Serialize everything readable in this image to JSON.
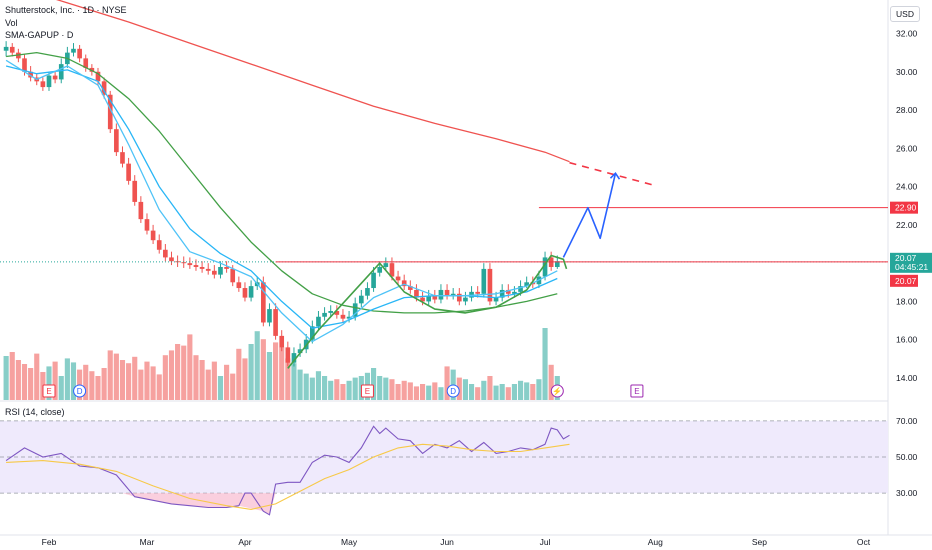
{
  "header": {
    "symbol_line": "Shutterstock, Inc. · 1D · NYSE",
    "vol_label": "Vol",
    "indicator_label": "SMA-GAPUP · D",
    "rsi_label": "RSI (14, close)",
    "currency": "USD"
  },
  "badges": {
    "last_price": "20.07",
    "countdown": "04:45:21",
    "level_price": "22.90",
    "red_price": "20.07"
  },
  "event_markers": [
    {
      "label": "E",
      "kind": "earnings",
      "color": "#f23645",
      "x": 7
    },
    {
      "label": "D",
      "kind": "dividend",
      "color": "#2962ff",
      "x": 12
    },
    {
      "label": "E",
      "kind": "earnings",
      "color": "#f23645",
      "x": 59
    },
    {
      "label": "D",
      "kind": "dividend",
      "color": "#2962ff",
      "x": 73
    },
    {
      "label": "⚡",
      "kind": "split",
      "color": "#9c27b0",
      "x": 90
    },
    {
      "label": "E",
      "kind": "earnings",
      "color": "#9c27b0",
      "x": 103
    }
  ],
  "colors": {
    "up": "#26a69a",
    "down": "#ef5350",
    "ma_green": "#43a047",
    "ma_blue": "#29b6f6",
    "ma_red": "#f23645",
    "ma200": "#ef5350",
    "drawing_blue": "#2962ff",
    "rsi_line": "#7e57c2",
    "rsi_ma": "#f7c948",
    "rsi_band": "#efeafc"
  },
  "chart_data": [
    {
      "type": "candlestick",
      "title": "Shutterstock, Inc. · 1D · NYSE",
      "x_tick_labels": [
        "Feb",
        "Mar",
        "Apr",
        "May",
        "Jun",
        "Jul",
        "Aug",
        "Sep",
        "Oct"
      ],
      "x_tick_index": {
        "Feb": 7,
        "Mar": 23,
        "Apr": 39,
        "May": 56,
        "Jun": 72,
        "Jul": 88,
        "Aug": 106,
        "Sep": 123,
        "Oct": 140
      },
      "y_ticks": [
        14.0,
        16.0,
        18.0,
        20.0,
        22.0,
        24.0,
        26.0,
        28.0,
        30.0,
        32.0
      ],
      "ylim": [
        12.85,
        33.75
      ],
      "xlim": [
        -1,
        144
      ],
      "last_price": 20.07,
      "horizontal_levels": [
        20.07,
        22.9
      ],
      "close": [
        31.3,
        31.0,
        30.7,
        30.0,
        29.7,
        29.5,
        29.2,
        29.8,
        29.6,
        30.4,
        31.0,
        31.2,
        30.7,
        30.2,
        30.0,
        29.5,
        28.8,
        27.0,
        25.8,
        25.2,
        24.3,
        23.2,
        22.3,
        21.7,
        21.2,
        20.7,
        20.3,
        20.1,
        20.05,
        20.0,
        19.9,
        19.8,
        19.7,
        19.6,
        19.4,
        19.8,
        19.7,
        19.0,
        18.7,
        18.2,
        18.8,
        19.0,
        16.9,
        17.6,
        16.2,
        15.6,
        14.8,
        15.3,
        15.5,
        16.0,
        16.7,
        17.2,
        17.4,
        17.5,
        17.3,
        17.1,
        17.2,
        17.9,
        18.3,
        18.7,
        19.5,
        19.8,
        20.0,
        19.3,
        19.1,
        18.8,
        18.6,
        18.2,
        18.0,
        18.3,
        18.1,
        18.6,
        18.3,
        18.4,
        18.0,
        18.2,
        18.5,
        18.4,
        19.7,
        18.0,
        18.2,
        18.6,
        18.4,
        18.5,
        18.8,
        19.0,
        18.9,
        19.3,
        20.3,
        19.8,
        20.1
      ],
      "open": [
        31.1,
        31.3,
        31.0,
        30.7,
        30.0,
        29.7,
        29.5,
        29.2,
        29.8,
        29.6,
        30.4,
        31.0,
        31.2,
        30.7,
        30.2,
        30.0,
        29.5,
        28.8,
        27.0,
        25.8,
        25.2,
        24.3,
        23.2,
        22.3,
        21.7,
        21.2,
        20.7,
        20.3,
        20.1,
        20.05,
        20.0,
        19.9,
        19.8,
        19.7,
        19.6,
        19.4,
        19.8,
        19.7,
        19.0,
        18.7,
        18.2,
        18.8,
        19.0,
        16.9,
        17.6,
        16.2,
        15.6,
        14.8,
        15.3,
        15.5,
        16.0,
        16.7,
        17.2,
        17.4,
        17.5,
        17.3,
        17.1,
        17.2,
        17.9,
        18.3,
        18.7,
        19.5,
        19.8,
        20.0,
        19.3,
        19.1,
        18.8,
        18.6,
        18.2,
        18.0,
        18.3,
        18.1,
        18.6,
        18.3,
        18.4,
        18.0,
        18.2,
        18.5,
        18.4,
        19.7,
        18.0,
        18.2,
        18.6,
        18.4,
        18.5,
        18.8,
        19.0,
        18.9,
        19.3,
        20.3,
        19.8
      ],
      "high": [
        31.6,
        31.5,
        31.2,
        30.9,
        30.3,
        29.9,
        29.7,
        30.0,
        30.0,
        30.7,
        31.3,
        31.5,
        31.4,
        30.9,
        30.4,
        30.2,
        29.7,
        29.0,
        27.3,
        26.1,
        25.5,
        24.6,
        23.5,
        22.6,
        22.0,
        21.5,
        21.0,
        20.6,
        20.4,
        20.35,
        20.3,
        20.2,
        20.1,
        20.0,
        19.9,
        20.1,
        20.1,
        19.9,
        19.3,
        19.0,
        19.1,
        19.3,
        19.3,
        17.9,
        17.9,
        16.5,
        15.9,
        15.6,
        15.8,
        16.3,
        17.0,
        17.5,
        17.7,
        17.8,
        17.8,
        17.6,
        17.5,
        18.2,
        18.6,
        19.0,
        19.8,
        20.1,
        20.3,
        20.3,
        19.6,
        19.4,
        19.1,
        18.9,
        18.5,
        18.6,
        18.6,
        18.9,
        18.9,
        18.7,
        18.7,
        18.5,
        18.8,
        18.8,
        20.0,
        20.0,
        18.5,
        18.9,
        18.9,
        18.8,
        19.1,
        19.3,
        19.3,
        19.6,
        20.6,
        20.6,
        20.4
      ],
      "low": [
        30.8,
        30.8,
        30.5,
        29.8,
        29.5,
        29.3,
        29.0,
        29.0,
        29.4,
        29.4,
        30.2,
        30.8,
        30.5,
        30.0,
        29.8,
        29.3,
        28.6,
        26.8,
        25.6,
        25.0,
        24.1,
        23.0,
        22.1,
        21.5,
        21.0,
        20.5,
        20.1,
        19.9,
        19.8,
        19.75,
        19.7,
        19.6,
        19.5,
        19.4,
        19.2,
        19.2,
        19.5,
        18.8,
        18.5,
        18.0,
        18.0,
        18.6,
        16.7,
        16.7,
        16.0,
        15.4,
        14.6,
        14.6,
        15.1,
        15.3,
        15.8,
        16.5,
        17.0,
        17.2,
        17.1,
        16.9,
        16.9,
        17.0,
        17.7,
        18.1,
        18.5,
        19.3,
        19.6,
        19.1,
        18.9,
        18.6,
        18.4,
        18.0,
        17.8,
        17.8,
        17.9,
        17.9,
        18.1,
        18.1,
        17.8,
        17.8,
        18.0,
        18.2,
        18.2,
        17.8,
        17.8,
        18.0,
        18.2,
        18.2,
        18.3,
        18.7,
        18.7,
        18.7,
        19.1,
        19.6,
        19.7
      ],
      "volume": [
        0.55,
        0.6,
        0.5,
        0.45,
        0.4,
        0.58,
        0.35,
        0.42,
        0.48,
        0.3,
        0.52,
        0.47,
        0.38,
        0.44,
        0.36,
        0.3,
        0.4,
        0.62,
        0.58,
        0.5,
        0.46,
        0.54,
        0.38,
        0.48,
        0.42,
        0.32,
        0.56,
        0.62,
        0.7,
        0.68,
        0.82,
        0.56,
        0.5,
        0.38,
        0.48,
        0.3,
        0.44,
        0.33,
        0.64,
        0.52,
        0.7,
        0.86,
        0.76,
        0.6,
        0.72,
        0.66,
        0.52,
        0.46,
        0.38,
        0.33,
        0.28,
        0.36,
        0.3,
        0.24,
        0.26,
        0.2,
        0.24,
        0.28,
        0.3,
        0.34,
        0.4,
        0.3,
        0.28,
        0.26,
        0.2,
        0.24,
        0.22,
        0.17,
        0.2,
        0.18,
        0.22,
        0.16,
        0.42,
        0.38,
        0.28,
        0.26,
        0.2,
        0.16,
        0.24,
        0.3,
        0.18,
        0.2,
        0.16,
        0.2,
        0.24,
        0.22,
        0.2,
        0.26,
        0.9,
        0.44,
        0.3
      ],
      "series": [
        {
          "name": "200-day moving average",
          "color": "#ef5350",
          "x": [
            0,
            10,
            20,
            30,
            40,
            50,
            60,
            70,
            80,
            88,
            92
          ],
          "values": [
            34.6,
            33.6,
            32.6,
            31.5,
            30.4,
            29.3,
            28.2,
            27.3,
            26.5,
            25.8,
            25.3
          ]
        },
        {
          "name": "50-day moving average",
          "color": "#43a047",
          "x": [
            0,
            5,
            10,
            15,
            20,
            25,
            30,
            35,
            40,
            45,
            50,
            55,
            60,
            65,
            70,
            75,
            80,
            85,
            90
          ],
          "values": [
            30.8,
            31.0,
            30.7,
            29.9,
            28.6,
            26.9,
            24.9,
            22.9,
            21.1,
            19.6,
            18.4,
            17.8,
            17.5,
            17.4,
            17.4,
            17.5,
            17.7,
            18.0,
            18.4
          ]
        },
        {
          "name": "20-day moving average",
          "color": "#29b6f6",
          "x": [
            0,
            5,
            10,
            15,
            20,
            25,
            30,
            35,
            40,
            45,
            50,
            55,
            60,
            65,
            70,
            75,
            80,
            85,
            90
          ],
          "values": [
            30.3,
            29.9,
            30.1,
            29.5,
            27.0,
            24.0,
            21.8,
            20.5,
            19.6,
            18.0,
            16.6,
            16.9,
            17.6,
            18.2,
            18.3,
            18.3,
            18.2,
            18.5,
            19.2
          ]
        },
        {
          "name": "10-day moving average",
          "color": "#4fc3f7",
          "x": [
            0,
            5,
            10,
            15,
            20,
            25,
            30,
            35,
            40,
            45,
            50,
            55,
            60,
            65,
            70,
            75,
            80,
            85,
            90
          ],
          "values": [
            30.6,
            29.6,
            30.3,
            29.3,
            26.2,
            22.8,
            20.6,
            20.0,
            19.3,
            17.4,
            15.9,
            16.8,
            18.2,
            18.9,
            18.3,
            18.3,
            18.4,
            18.8,
            19.6
          ]
        },
        {
          "name": "200-day projection",
          "color": "#f23645",
          "x": [
            92,
            106
          ],
          "values": [
            25.25,
            24.05
          ],
          "dashed": true
        },
        {
          "name": "Cup outline",
          "color": "#43a047",
          "x": [
            46,
            51,
            61,
            65,
            70,
            75,
            80,
            85,
            89,
            91,
            91.5
          ],
          "values": [
            14.5,
            16.5,
            20.0,
            18.5,
            17.6,
            17.4,
            17.7,
            18.6,
            20.4,
            20.2,
            19.7
          ]
        },
        {
          "name": "Projected path",
          "color": "#2962ff",
          "x": [
            91,
            95,
            97,
            99.5
          ],
          "values": [
            20.3,
            22.9,
            21.3,
            24.7
          ]
        }
      ],
      "projection_level_segment": {
        "x": [
          87,
          144
        ],
        "value": 22.9
      }
    },
    {
      "type": "line",
      "title": "RSI (14, close)",
      "y_ticks": [
        30.0,
        50.0,
        70.0
      ],
      "ylim": [
        14,
        76
      ],
      "band": [
        30,
        70
      ],
      "series": [
        {
          "name": "RSI",
          "color": "#7e57c2",
          "x": [
            0,
            3,
            6,
            9,
            12,
            15,
            18,
            21,
            24,
            27,
            30,
            33,
            36,
            38,
            39,
            40,
            42,
            43,
            44,
            46,
            48,
            50,
            52,
            54,
            56,
            58,
            60,
            61,
            62,
            64,
            66,
            68,
            70,
            72,
            74,
            76,
            78,
            80,
            82,
            84,
            86,
            88,
            89,
            90,
            91,
            92
          ],
          "values": [
            48,
            55,
            50,
            52,
            45,
            44,
            40,
            28,
            26,
            24,
            23,
            22,
            22,
            23,
            30,
            30,
            20,
            18,
            35,
            36,
            36,
            47,
            51,
            50,
            47,
            55,
            67,
            63,
            66,
            60,
            59,
            52,
            57,
            55,
            59,
            53,
            58,
            52,
            53,
            55,
            54,
            57,
            66,
            65,
            60,
            62
          ]
        },
        {
          "name": "RSI-based MA",
          "color": "#f7c948",
          "x": [
            0,
            6,
            12,
            18,
            24,
            30,
            36,
            40,
            44,
            48,
            52,
            56,
            60,
            64,
            68,
            72,
            76,
            80,
            84,
            88,
            92
          ],
          "values": [
            47,
            48,
            46,
            42,
            34,
            27,
            23,
            21,
            24,
            31,
            38,
            43,
            50,
            55,
            57,
            56,
            54,
            53,
            53,
            55,
            57
          ]
        }
      ]
    }
  ]
}
